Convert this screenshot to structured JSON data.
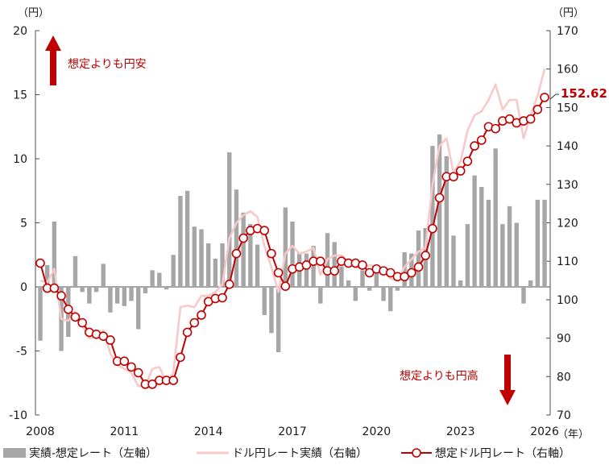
{
  "chart_data": {
    "type": "bar+line",
    "title": "",
    "left_axis": {
      "unit_label": "（円）",
      "ylim": [
        -10,
        20
      ],
      "ticks": [
        "-10",
        "-5",
        "0",
        "5",
        "10",
        "15",
        "20"
      ]
    },
    "right_axis": {
      "unit_label": "（円）",
      "ylim": [
        70,
        170
      ],
      "ticks": [
        "70",
        "80",
        "90",
        "100",
        "110",
        "120",
        "130",
        "140",
        "150",
        "160",
        "170"
      ]
    },
    "x_axis": {
      "unit_label": "（年）",
      "xlim": [
        2008,
        2026.2
      ],
      "ticks": [
        "2008",
        "2011",
        "2014",
        "2017",
        "2020",
        "2023",
        "2026"
      ]
    },
    "annotations": {
      "up_note": "想定よりも円安",
      "down_note": "想定よりも円高",
      "end_value": "152.62"
    },
    "legend": {
      "bars": "実績-想定レート（左軸）",
      "actual": "ドル円レート実績（右軸）",
      "assumed": "想定ドル円レート（右軸）"
    },
    "colors": {
      "bars": "#a6a6a6",
      "actual": "#f7c9c9",
      "assumed": "#c00000",
      "arrow": "#c00000"
    },
    "series": [
      {
        "name": "実績-想定レート（左軸）",
        "role": "bars",
        "x": [
          2008.0,
          2008.25,
          2008.5,
          2008.75,
          2009.0,
          2009.25,
          2009.5,
          2009.75,
          2010.0,
          2010.25,
          2010.5,
          2010.75,
          2011.0,
          2011.25,
          2011.5,
          2011.75,
          2012.0,
          2012.25,
          2012.5,
          2012.75,
          2013.0,
          2013.25,
          2013.5,
          2013.75,
          2014.0,
          2014.25,
          2014.5,
          2014.75,
          2015.0,
          2015.25,
          2015.5,
          2015.75,
          2016.0,
          2016.25,
          2016.5,
          2016.75,
          2017.0,
          2017.25,
          2017.5,
          2017.75,
          2018.0,
          2018.25,
          2018.5,
          2018.75,
          2019.0,
          2019.25,
          2019.5,
          2019.75,
          2020.0,
          2020.25,
          2020.5,
          2020.75,
          2021.0,
          2021.25,
          2021.5,
          2021.75,
          2022.0,
          2022.25,
          2022.5,
          2022.75,
          2023.0,
          2023.25,
          2023.5,
          2023.75,
          2024.0,
          2024.25,
          2024.5,
          2024.75,
          2025.0,
          2025.25,
          2025.5,
          2025.75,
          2026.0
        ],
        "values": [
          -4.2,
          1.7,
          5.1,
          -5.0,
          -3.9,
          2.4,
          -0.4,
          -1.3,
          -0.4,
          1.8,
          -2.0,
          -1.3,
          -1.5,
          -1.1,
          -3.3,
          -0.5,
          1.3,
          1.1,
          -0.2,
          2.5,
          7.1,
          7.5,
          4.7,
          4.5,
          3.4,
          2.2,
          3.4,
          10.5,
          7.6,
          5.8,
          4.9,
          3.3,
          -2.2,
          -3.6,
          -5.1,
          6.2,
          5.1,
          2.7,
          2.6,
          3.2,
          -1.3,
          4.2,
          3.5,
          1.6,
          0.5,
          -1.1,
          1.3,
          -0.3,
          1.7,
          -1.1,
          -1.9,
          -0.3,
          2.7,
          2.6,
          4.4,
          4.6,
          11.0,
          11.9,
          10.2,
          4.0,
          0.5,
          4.9,
          8.7,
          7.8,
          6.8,
          10.8,
          4.9,
          6.3,
          5.0,
          -1.3,
          0.5,
          6.8,
          6.8
        ]
      },
      {
        "name": "想定ドル円レート（右軸）",
        "role": "assumed",
        "x": [
          2008.0,
          2008.25,
          2008.5,
          2008.75,
          2009.0,
          2009.25,
          2009.5,
          2009.75,
          2010.0,
          2010.25,
          2010.5,
          2010.75,
          2011.0,
          2011.25,
          2011.5,
          2011.75,
          2012.0,
          2012.25,
          2012.5,
          2012.75,
          2013.0,
          2013.25,
          2013.5,
          2013.75,
          2014.0,
          2014.25,
          2014.5,
          2014.75,
          2015.0,
          2015.25,
          2015.5,
          2015.75,
          2016.0,
          2016.25,
          2016.5,
          2016.75,
          2017.0,
          2017.25,
          2017.5,
          2017.75,
          2018.0,
          2018.25,
          2018.5,
          2018.75,
          2019.0,
          2019.25,
          2019.5,
          2019.75,
          2020.0,
          2020.25,
          2020.5,
          2020.75,
          2021.0,
          2021.25,
          2021.5,
          2021.75,
          2022.0,
          2022.25,
          2022.5,
          2022.75,
          2023.0,
          2023.25,
          2023.5,
          2023.75,
          2024.0,
          2024.25,
          2024.5,
          2024.75,
          2025.0,
          2025.25,
          2025.5,
          2025.75,
          2026.0
        ],
        "values": [
          109.5,
          103.0,
          103.0,
          101.0,
          97.5,
          95.5,
          94.0,
          91.5,
          91.0,
          90.5,
          89.5,
          84.0,
          84.0,
          82.5,
          81.0,
          78.0,
          78.0,
          79.0,
          79.0,
          79.0,
          85.0,
          91.5,
          94.0,
          96.0,
          99.5,
          100.3,
          100.5,
          104.0,
          112.0,
          116.0,
          118.0,
          118.5,
          118.0,
          112.0,
          107.0,
          103.5,
          108.0,
          108.5,
          109.0,
          110.0,
          110.0,
          107.5,
          107.5,
          110.0,
          109.5,
          109.5,
          109.0,
          107.0,
          108.0,
          107.5,
          107.0,
          106.0,
          106.0,
          107.0,
          108.5,
          111.5,
          118.5,
          126.5,
          132.0,
          132.0,
          133.5,
          136.0,
          140.0,
          141.5,
          145.0,
          144.5,
          146.5,
          147.0,
          146.0,
          146.5,
          147.0,
          149.5,
          152.62
        ]
      },
      {
        "name": "ドル円レート実績（右軸）",
        "role": "actual",
        "x": [
          2008.0,
          2008.25,
          2008.5,
          2008.75,
          2009.0,
          2009.25,
          2009.5,
          2009.75,
          2010.0,
          2010.25,
          2010.5,
          2010.75,
          2011.0,
          2011.25,
          2011.5,
          2011.75,
          2012.0,
          2012.25,
          2012.5,
          2012.75,
          2013.0,
          2013.25,
          2013.5,
          2013.75,
          2014.0,
          2014.25,
          2014.5,
          2014.75,
          2015.0,
          2015.25,
          2015.5,
          2015.75,
          2016.0,
          2016.25,
          2016.5,
          2016.75,
          2017.0,
          2017.25,
          2017.5,
          2017.75,
          2018.0,
          2018.25,
          2018.5,
          2018.75,
          2019.0,
          2019.25,
          2019.5,
          2019.75,
          2020.0,
          2020.25,
          2020.5,
          2020.75,
          2021.0,
          2021.25,
          2021.5,
          2021.75,
          2022.0,
          2022.25,
          2022.5,
          2022.75,
          2023.0,
          2023.25,
          2023.5,
          2023.75,
          2024.0,
          2024.25,
          2024.5,
          2024.75,
          2025.0,
          2025.25,
          2025.5,
          2025.75,
          2026.0
        ],
        "values": [
          105.0,
          104.5,
          108.0,
          95.0,
          94.5,
          97.0,
          93.5,
          90.0,
          90.5,
          92.0,
          86.0,
          83.0,
          82.0,
          81.0,
          77.5,
          77.5,
          82.0,
          82.5,
          78.5,
          81.0,
          98.0,
          98.5,
          98.0,
          101.0,
          101.0,
          102.0,
          104.0,
          116.0,
          120.0,
          122.0,
          123.0,
          121.5,
          114.0,
          108.5,
          102.0,
          112.0,
          114.0,
          112.0,
          112.5,
          113.5,
          106.5,
          110.5,
          111.5,
          111.5,
          110.0,
          108.5,
          108.0,
          109.0,
          108.5,
          107.5,
          105.5,
          105.0,
          108.5,
          110.5,
          112.5,
          113.5,
          130.0,
          140.0,
          142.0,
          133.0,
          136.0,
          144.0,
          148.0,
          149.0,
          152.0,
          156.0,
          149.5,
          152.0,
          152.0,
          142.0,
          148.0,
          153.0,
          160.0
        ]
      }
    ]
  }
}
